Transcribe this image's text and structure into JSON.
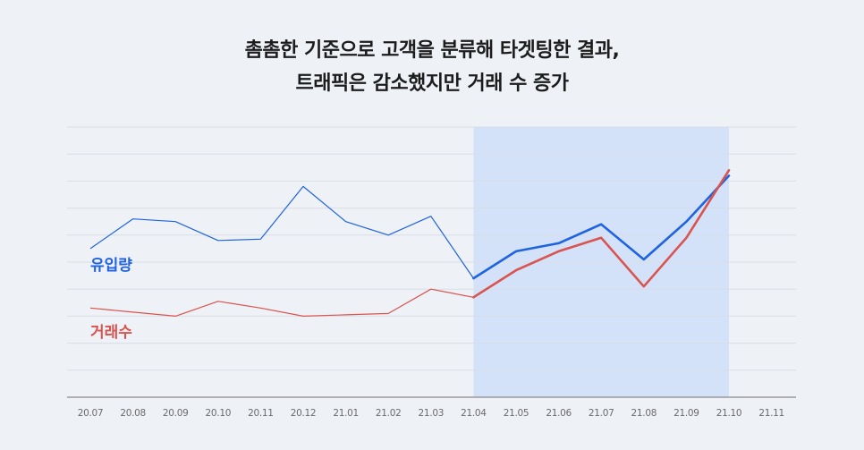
{
  "title_lines": [
    "촘촘한 기준으로 고객을 분류해 타겟팅한 결과,",
    "트래픽은 감소했지만 거래 수 증가"
  ],
  "colors": {
    "traffic": "#1f63e0",
    "transactions": "#d9534f",
    "highlight": "#d3e2f8",
    "grid": "#d9dde6",
    "axis": "#8a8a8a",
    "background": "#eef1f6"
  },
  "chart_data": {
    "type": "line",
    "title": "촘촘한 기준으로 고객을 분류해 타겟팅한 결과, 트래픽은 감소했지만 거래 수 증가",
    "categories": [
      "20.07",
      "20.08",
      "20.09",
      "20.10",
      "20.11",
      "20.12",
      "21.01",
      "21.02",
      "21.03",
      "21.04",
      "21.05",
      "21.06",
      "21.07",
      "21.08",
      "21.09",
      "21.10",
      "21.11"
    ],
    "ylim": [
      0,
      100
    ],
    "grid": true,
    "y_tick_labels": false,
    "highlight_range": [
      "21.04",
      "21.10"
    ],
    "series": [
      {
        "name": "유입량",
        "key": "traffic",
        "values": [
          55,
          66,
          65,
          58,
          58.5,
          78,
          65,
          60,
          67,
          44,
          54,
          57,
          64,
          51,
          65,
          82,
          null
        ]
      },
      {
        "name": "거래수",
        "key": "transactions",
        "values": [
          33,
          31.5,
          30,
          35.5,
          33,
          30,
          30.5,
          31,
          40,
          37,
          47,
          54,
          59,
          41,
          59,
          84,
          null
        ]
      }
    ]
  }
}
